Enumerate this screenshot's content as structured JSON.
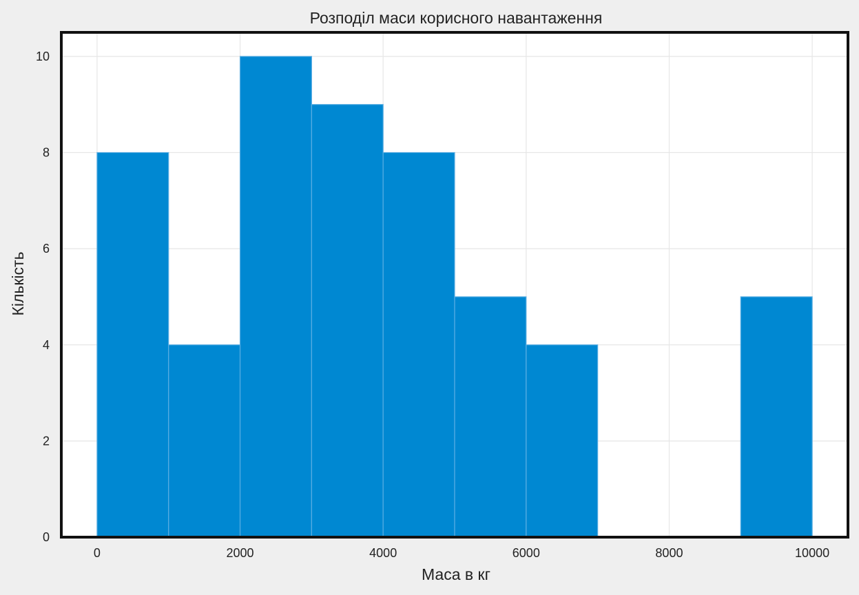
{
  "chart_data": {
    "type": "bar",
    "subtype": "histogram",
    "title": "Розподіл маси корисного навантаження",
    "xlabel": "Маса в кг",
    "ylabel": "Кількість",
    "bins": [
      {
        "start": 0,
        "end": 1000,
        "count": 8
      },
      {
        "start": 1000,
        "end": 2000,
        "count": 4
      },
      {
        "start": 2000,
        "end": 3000,
        "count": 10
      },
      {
        "start": 3000,
        "end": 4000,
        "count": 9
      },
      {
        "start": 4000,
        "end": 5000,
        "count": 8
      },
      {
        "start": 5000,
        "end": 6000,
        "count": 5
      },
      {
        "start": 6000,
        "end": 7000,
        "count": 4
      },
      {
        "start": 7000,
        "end": 8000,
        "count": 0
      },
      {
        "start": 8000,
        "end": 9000,
        "count": 0
      },
      {
        "start": 9000,
        "end": 10000,
        "count": 5
      }
    ],
    "xlim": [
      -500,
      10500
    ],
    "ylim": [
      0,
      10.5
    ],
    "xticks": [
      0,
      2000,
      4000,
      6000,
      8000,
      10000
    ],
    "yticks": [
      0,
      2,
      4,
      6,
      8,
      10
    ],
    "grid": true,
    "bar_color": "#0088d2",
    "edge_color": "#5aaee3",
    "background_color": "#efefef",
    "plot_background": "#ffffff"
  }
}
